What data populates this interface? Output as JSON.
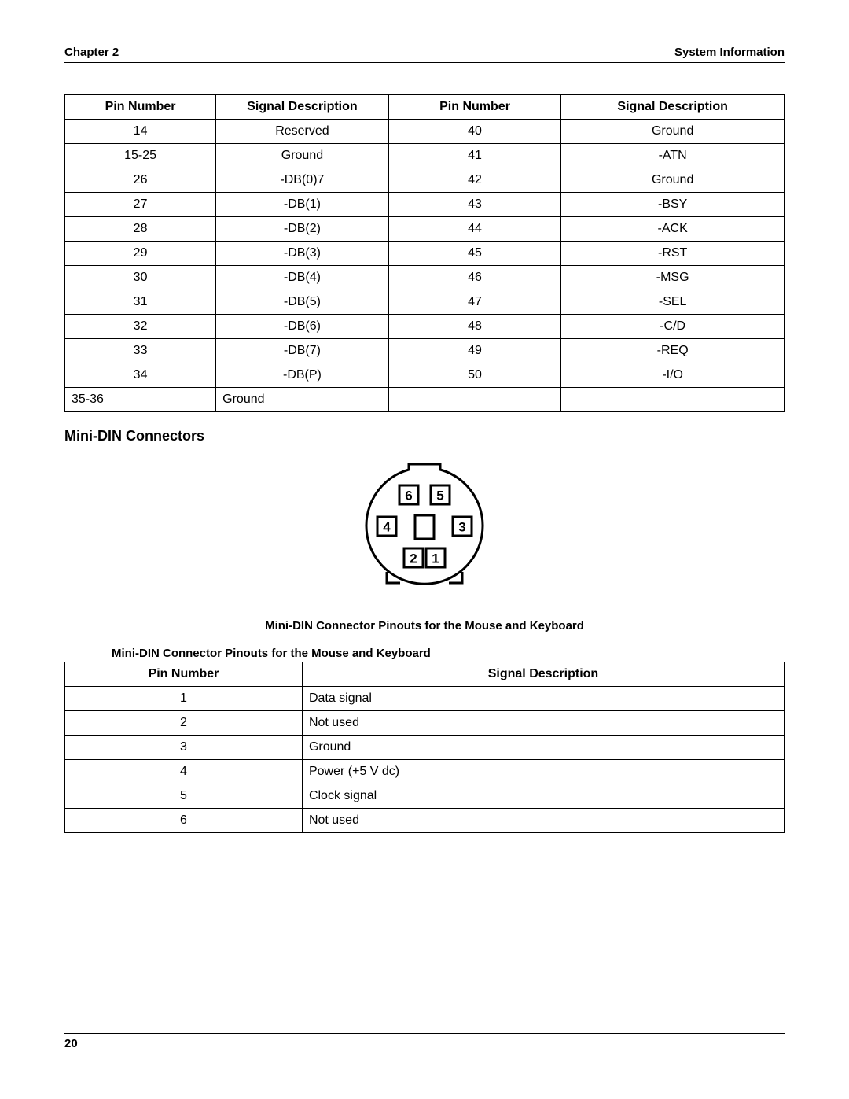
{
  "header": {
    "left": "Chapter 2",
    "right": "System Information"
  },
  "footer": {
    "page_number": "20"
  },
  "table1": {
    "columns": [
      "Pin Number",
      "Signal Description",
      "Pin Number",
      "Signal Description"
    ],
    "rows": [
      {
        "a": "14",
        "b": "Reserved",
        "c": "40",
        "d": "Ground",
        "align": "center"
      },
      {
        "a": "15-25",
        "b": "Ground",
        "c": "41",
        "d": "-ATN",
        "align": "center"
      },
      {
        "a": "26",
        "b": "-DB(0)7",
        "c": "42",
        "d": "Ground",
        "align": "center"
      },
      {
        "a": "27",
        "b": "-DB(1)",
        "c": "43",
        "d": "-BSY",
        "align": "center"
      },
      {
        "a": "28",
        "b": "-DB(2)",
        "c": "44",
        "d": "-ACK",
        "align": "center"
      },
      {
        "a": "29",
        "b": "-DB(3)",
        "c": "45",
        "d": "-RST",
        "align": "center"
      },
      {
        "a": "30",
        "b": "-DB(4)",
        "c": "46",
        "d": "-MSG",
        "align": "center"
      },
      {
        "a": "31",
        "b": "-DB(5)",
        "c": "47",
        "d": "-SEL",
        "align": "center"
      },
      {
        "a": "32",
        "b": "-DB(6)",
        "c": "48",
        "d": "-C/D",
        "align": "center"
      },
      {
        "a": "33",
        "b": "-DB(7)",
        "c": "49",
        "d": "-REQ",
        "align": "center"
      },
      {
        "a": "34",
        "b": "-DB(P)",
        "c": "50",
        "d": "-I/O",
        "align": "center"
      },
      {
        "a": "35-36",
        "b": "Ground",
        "c": "",
        "d": "",
        "align": "left"
      }
    ]
  },
  "section_title": "Mini-DIN Connectors",
  "din_pins": {
    "1": "1",
    "2": "2",
    "3": "3",
    "4": "4",
    "5": "5",
    "6": "6",
    "stroke": "#000000",
    "stroke_width": 3,
    "fill": "#ffffff",
    "box_size": 24
  },
  "figure_caption": "Mini-DIN Connector Pinouts for the Mouse and Keyboard",
  "table2": {
    "caption": "Mini-DIN Connector Pinouts for the Mouse and Keyboard",
    "columns": [
      "Pin Number",
      "Signal Description"
    ],
    "rows": [
      {
        "pin": "1",
        "desc": "Data signal"
      },
      {
        "pin": "2",
        "desc": "Not used"
      },
      {
        "pin": "3",
        "desc": "Ground"
      },
      {
        "pin": "4",
        "desc": "Power (+5 V dc)"
      },
      {
        "pin": "5",
        "desc": "Clock signal"
      },
      {
        "pin": "6",
        "desc": "Not used"
      }
    ]
  }
}
